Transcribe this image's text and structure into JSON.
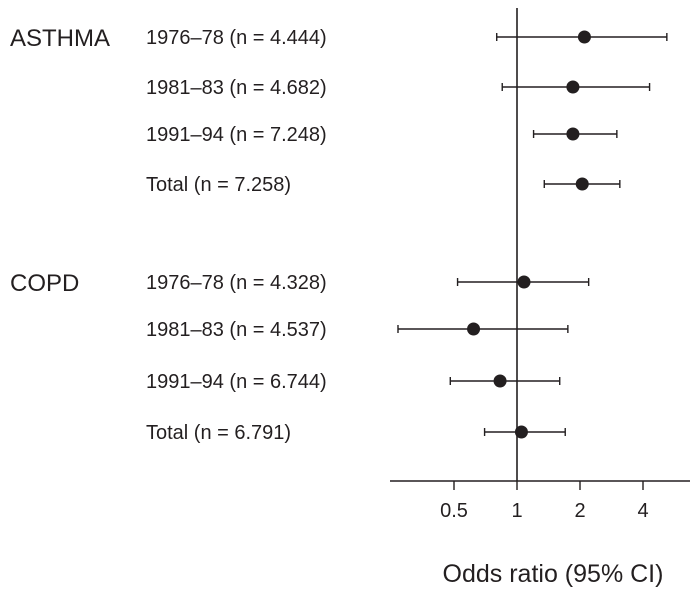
{
  "chart_data": {
    "type": "forest",
    "xlabel": "Odds ratio (95% CI)",
    "x_scale": "log2",
    "xlim": [
      0.25,
      6
    ],
    "reference_line": 1,
    "ticks": [
      {
        "value": 0.5,
        "label": "0.5"
      },
      {
        "value": 1,
        "label": "1"
      },
      {
        "value": 2,
        "label": "2"
      },
      {
        "value": 4,
        "label": "4"
      }
    ],
    "groups": [
      {
        "name": "ASTHMA",
        "rows": [
          {
            "label": "1976–78 (n = 4.444)",
            "or": 2.1,
            "lo": 0.8,
            "hi": 5.2
          },
          {
            "label": "1981–83 (n = 4.682)",
            "or": 1.85,
            "lo": 0.85,
            "hi": 4.3
          },
          {
            "label": "1991–94 (n = 7.248)",
            "or": 1.85,
            "lo": 1.2,
            "hi": 3.0
          },
          {
            "label": "Total (n = 7.258)",
            "or": 2.05,
            "lo": 1.35,
            "hi": 3.1
          }
        ]
      },
      {
        "name": "COPD",
        "rows": [
          {
            "label": "1976–78 (n = 4.328)",
            "or": 1.08,
            "lo": 0.52,
            "hi": 2.2
          },
          {
            "label": "1981–83 (n = 4.537)",
            "or": 0.62,
            "lo": 0.27,
            "hi": 1.75
          },
          {
            "label": "1991–94 (n = 6.744)",
            "or": 0.83,
            "lo": 0.48,
            "hi": 1.6
          },
          {
            "label": "Total (n = 6.791)",
            "or": 1.05,
            "lo": 0.7,
            "hi": 1.7
          }
        ]
      }
    ]
  }
}
